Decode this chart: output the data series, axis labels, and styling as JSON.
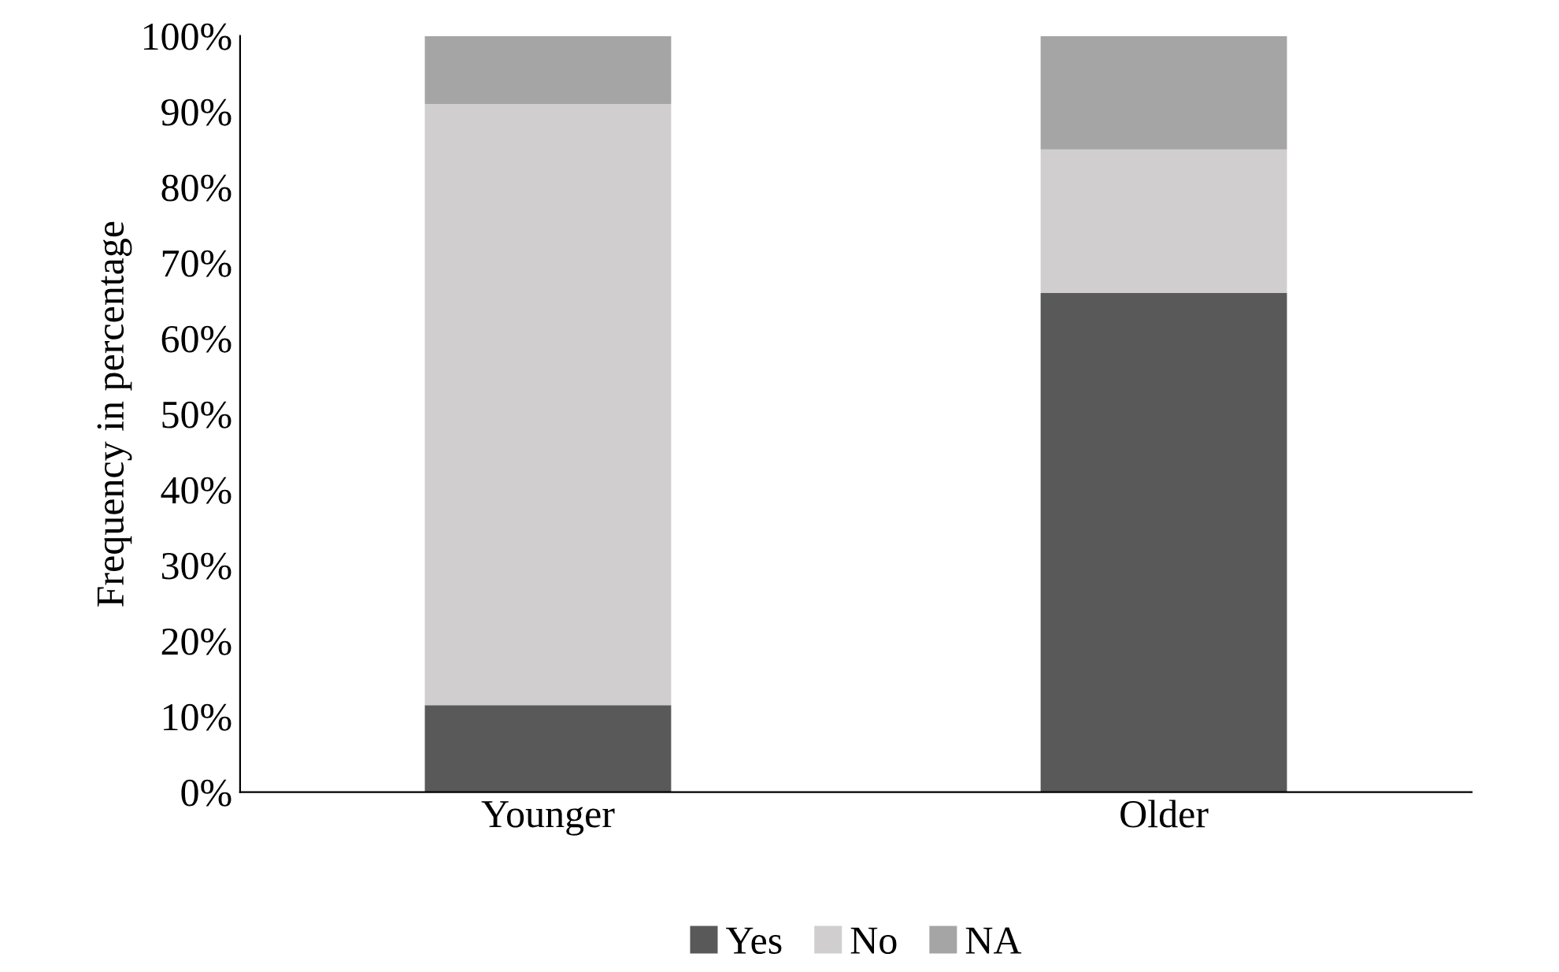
{
  "chart_data": {
    "type": "bar",
    "stacked": true,
    "ylabel": "Frequency in percentage",
    "categories": [
      "Younger",
      "Older"
    ],
    "series": [
      {
        "name": "Yes",
        "color": "#595959",
        "values": [
          11.5,
          66
        ]
      },
      {
        "name": "No",
        "color": "#d0cece",
        "values": [
          79.5,
          19
        ]
      },
      {
        "name": "NA",
        "color": "#a5a5a5",
        "values": [
          9,
          15
        ]
      }
    ],
    "ylim": [
      0,
      100
    ],
    "yticks": [
      {
        "value": 0,
        "label": "0%"
      },
      {
        "value": 10,
        "label": "10%"
      },
      {
        "value": 20,
        "label": "20%"
      },
      {
        "value": 30,
        "label": "30%"
      },
      {
        "value": 40,
        "label": "40%"
      },
      {
        "value": 50,
        "label": "50%"
      },
      {
        "value": 60,
        "label": "60%"
      },
      {
        "value": 70,
        "label": "70%"
      },
      {
        "value": 80,
        "label": "80%"
      },
      {
        "value": 90,
        "label": "90%"
      },
      {
        "value": 100,
        "label": "100%"
      }
    ],
    "grid": false,
    "legend": "bottom"
  }
}
